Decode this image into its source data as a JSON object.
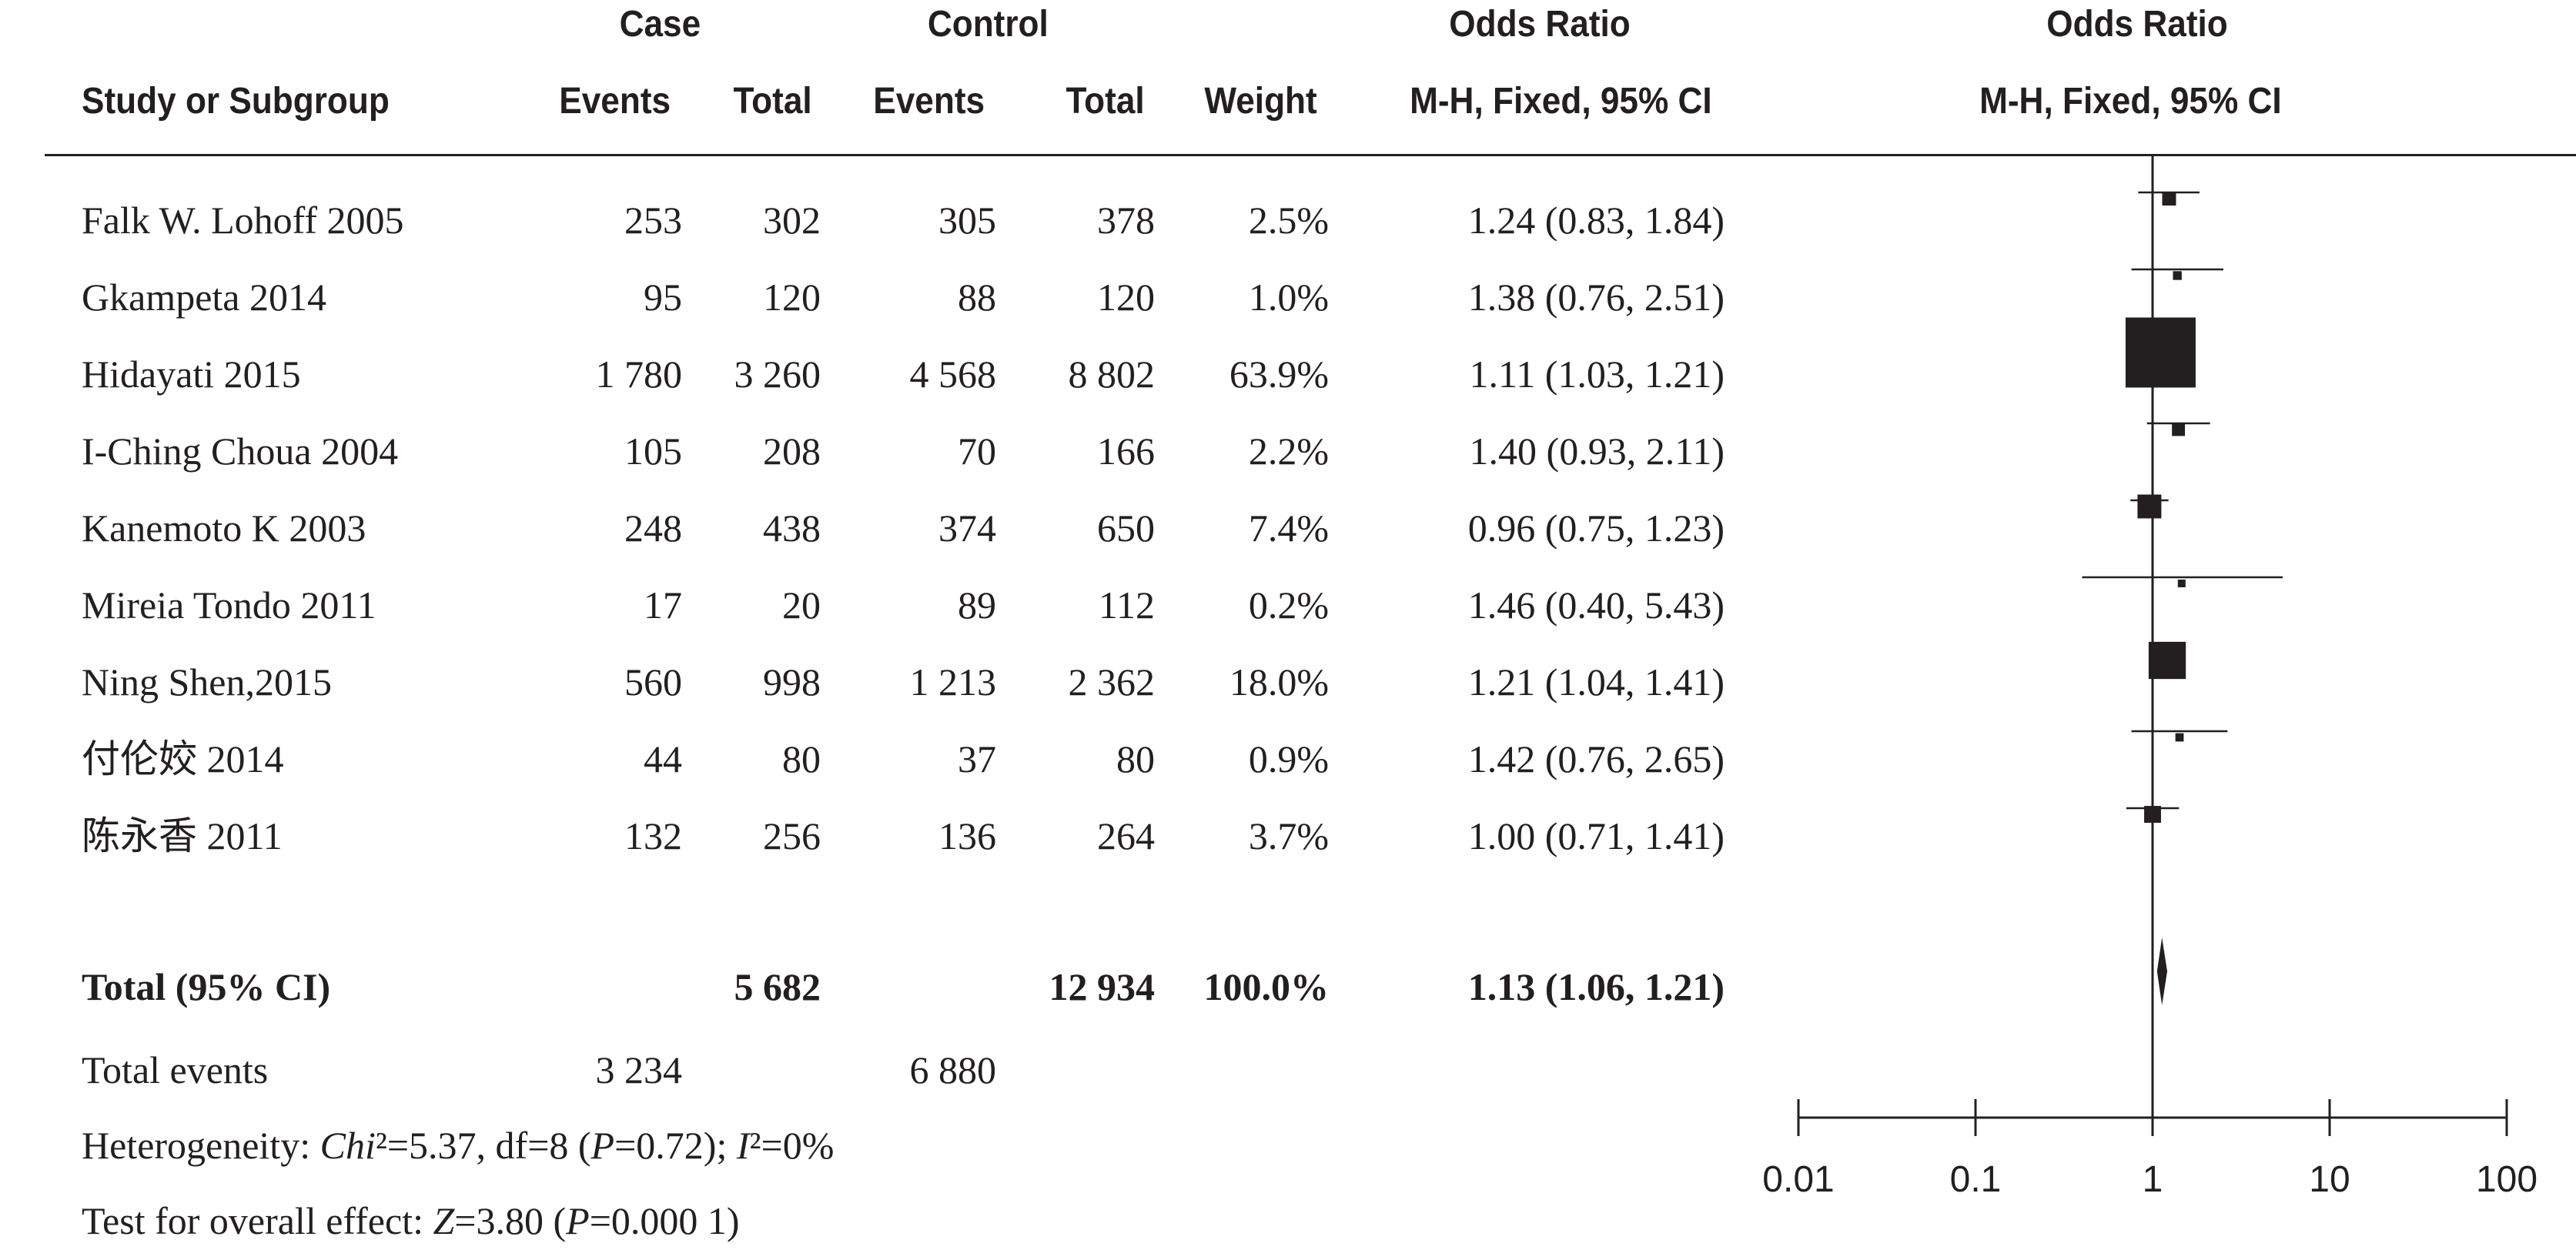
{
  "header": {
    "case": "Case",
    "control": "Control",
    "or_group": "Odds Ratio",
    "or_plot_group": "Odds Ratio",
    "study": "Study or Subgroup",
    "case_events": "Events",
    "case_total": "Total",
    "control_events": "Events",
    "control_total": "Total",
    "weight": "Weight",
    "method": "M-H, Fixed, 95% CI",
    "plot_method": "M-H, Fixed, 95% CI"
  },
  "rows": [
    {
      "study": "Falk W. Lohoff  2005",
      "case_events": "253",
      "case_total": "302",
      "control_events": "305",
      "control_total": "378",
      "weight": "2.5%",
      "ci": "1.24 (0.83, 1.84)"
    },
    {
      "study": "Gkampeta 2014",
      "case_events": "95",
      "case_total": "120",
      "control_events": "88",
      "control_total": "120",
      "weight": "1.0%",
      "ci": "1.38 (0.76, 2.51)"
    },
    {
      "study": "Hidayati 2015",
      "case_events": "1 780",
      "case_total": "3 260",
      "control_events": "4 568",
      "control_total": "8 802",
      "weight": "63.9%",
      "ci": "1.11 (1.03, 1.21)"
    },
    {
      "study": "I-Ching Choua 2004",
      "case_events": "105",
      "case_total": "208",
      "control_events": "70",
      "control_total": "166",
      "weight": "2.2%",
      "ci": "1.40 (0.93, 2.11)"
    },
    {
      "study": "Kanemoto K 2003",
      "case_events": "248",
      "case_total": "438",
      "control_events": "374",
      "control_total": "650",
      "weight": "7.4%",
      "ci": "0.96 (0.75, 1.23)"
    },
    {
      "study": "Mireia Tondo 2011",
      "case_events": "17",
      "case_total": "20",
      "control_events": "89",
      "control_total": "112",
      "weight": "0.2%",
      "ci": "1.46 (0.40, 5.43)"
    },
    {
      "study": "Ning Shen,2015",
      "case_events": "560",
      "case_total": "998",
      "control_events": "1 213",
      "control_total": "2 362",
      "weight": "18.0%",
      "ci": "1.21 (1.04, 1.41)"
    },
    {
      "study": "付伦姣 2014",
      "case_events": "44",
      "case_total": "80",
      "control_events": "37",
      "control_total": "80",
      "weight": "0.9%",
      "ci": "1.42 (0.76, 2.65)"
    },
    {
      "study": "陈永香 2011",
      "case_events": "132",
      "case_total": "256",
      "control_events": "136",
      "control_total": "264",
      "weight": "3.7%",
      "ci": "1.00 (0.71, 1.41)"
    }
  ],
  "total": {
    "label": "Total (95% CI)",
    "case_total": "5 682",
    "control_total": "12 934",
    "weight": "100.0%",
    "ci": "1.13 (1.06, 1.21)"
  },
  "total_events": {
    "label": "Total events",
    "case": "3 234",
    "control": "6 880"
  },
  "heterogeneity": {
    "prefix": "Heterogeneity: ",
    "chi_label": "Chi",
    "chi_rest": "²=5.37, df=8 (",
    "p_label": "P",
    "p_rest": "=0.72); ",
    "i_label": "I",
    "i_rest": "²=0%"
  },
  "overall": {
    "prefix": "Test for overall effect: ",
    "z_label": "Z",
    "z_rest": "=3.80 (",
    "p_label": "P",
    "p_rest": "=0.000 1)"
  },
  "chart_data": {
    "type": "forest",
    "x_scale": "log",
    "xlim": [
      0.01,
      100
    ],
    "x_ticks": [
      "0.01",
      "0.1",
      "1",
      "10",
      "100"
    ],
    "reference_line": 1,
    "studies": [
      {
        "or": 1.24,
        "lower": 0.83,
        "upper": 1.84,
        "weight": 2.5
      },
      {
        "or": 1.38,
        "lower": 0.76,
        "upper": 2.51,
        "weight": 1.0
      },
      {
        "or": 1.11,
        "lower": 1.03,
        "upper": 1.21,
        "weight": 63.9
      },
      {
        "or": 1.4,
        "lower": 0.93,
        "upper": 2.11,
        "weight": 2.2
      },
      {
        "or": 0.96,
        "lower": 0.75,
        "upper": 1.23,
        "weight": 7.4
      },
      {
        "or": 1.46,
        "lower": 0.4,
        "upper": 5.43,
        "weight": 0.2
      },
      {
        "or": 1.21,
        "lower": 1.04,
        "upper": 1.41,
        "weight": 18.0
      },
      {
        "or": 1.42,
        "lower": 0.76,
        "upper": 2.65,
        "weight": 0.9
      },
      {
        "or": 1.0,
        "lower": 0.71,
        "upper": 1.41,
        "weight": 3.7
      }
    ],
    "pooled": {
      "or": 1.13,
      "lower": 1.06,
      "upper": 1.21
    },
    "colors": {
      "ink": "#231f20"
    }
  }
}
